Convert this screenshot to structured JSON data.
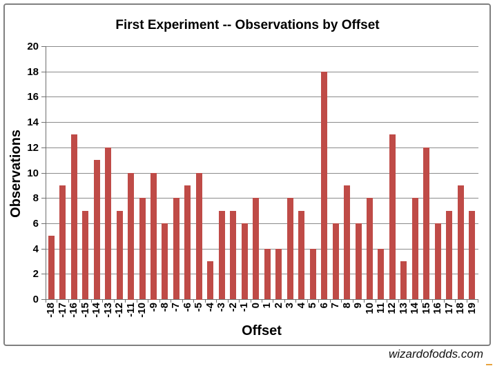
{
  "page": {
    "watermark": "wizardofodds.com"
  },
  "chart_data": {
    "type": "bar",
    "title": "First Experiment -- Observations by Offset",
    "xlabel": "Offset",
    "ylabel": "Observations",
    "categories": [
      "-18",
      "-17",
      "-16",
      "-15",
      "-14",
      "-13",
      "-12",
      "-11",
      "-10",
      "-9",
      "-8",
      "-7",
      "-6",
      "-5",
      "-4",
      "-3",
      "-2",
      "-1",
      "0",
      "1",
      "2",
      "3",
      "4",
      "5",
      "6",
      "7",
      "8",
      "9",
      "10",
      "11",
      "12",
      "13",
      "14",
      "15",
      "16",
      "17",
      "18",
      "19"
    ],
    "values": [
      5,
      9,
      13,
      7,
      11,
      12,
      7,
      10,
      8,
      10,
      6,
      8,
      9,
      10,
      3,
      7,
      7,
      6,
      8,
      4,
      4,
      8,
      7,
      4,
      18,
      6,
      9,
      6,
      8,
      4,
      13,
      3,
      8,
      12,
      6,
      7,
      9,
      7
    ],
    "ylim": [
      0,
      20
    ],
    "yticks": [
      0,
      2,
      4,
      6,
      8,
      10,
      12,
      14,
      16,
      18,
      20
    ],
    "grid": true,
    "legend": "none",
    "colors": {
      "bar": "#bf4b47",
      "gridline": "#8a8a8a",
      "axis": "#6e6e6e",
      "frame_border": "#7f7f7f",
      "text": "#000000",
      "watermark": "#111111",
      "corner_dash": "#e8a33d"
    }
  }
}
